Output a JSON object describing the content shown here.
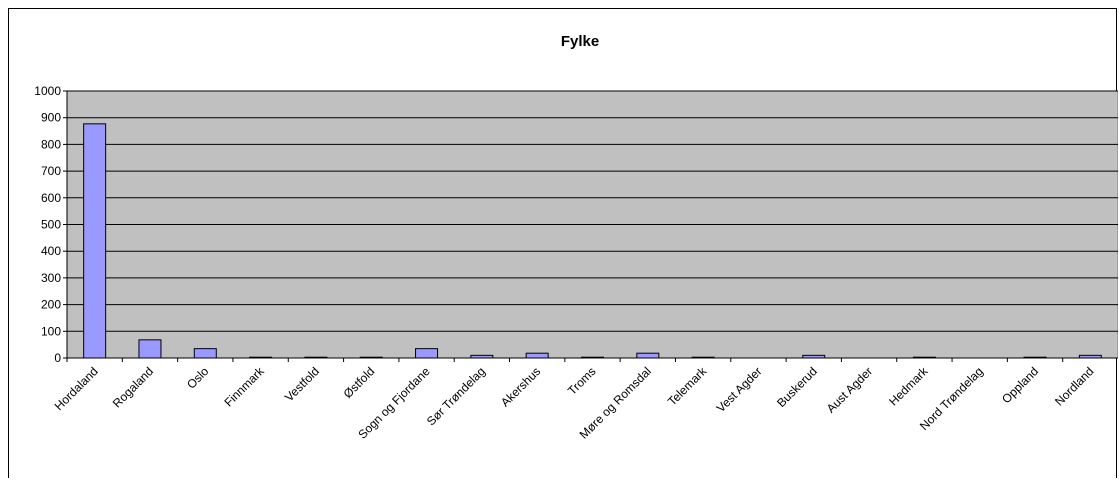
{
  "chart_data": {
    "type": "bar",
    "title": "Fylke",
    "xlabel": "",
    "ylabel": "",
    "ylim": [
      0,
      1000
    ],
    "yticks": [
      0,
      100,
      200,
      300,
      400,
      500,
      600,
      700,
      800,
      900,
      1000
    ],
    "grid": true,
    "legend": "none",
    "categories": [
      "Hordaland",
      "Rogaland",
      "Oslo",
      "Finnmark",
      "Vestfold",
      "Østfold",
      "Sogn og Fjordane",
      "Sør Trøndelag",
      "Akershus",
      "Troms",
      "Møre og Romsdal",
      "Telemark",
      "Vest Agder",
      "Buskerud",
      "Aust Agder",
      "Hedmark",
      "Nord Trøndelag",
      "Oppland",
      "Nordland"
    ],
    "values": [
      877,
      68,
      35,
      3,
      3,
      3,
      35,
      10,
      18,
      3,
      18,
      3,
      0,
      10,
      0,
      3,
      0,
      3,
      10
    ],
    "colors": {
      "bar_fill": "#9999ff",
      "bar_stroke": "#000000",
      "plot_background": "#c0c0c0",
      "gridline": "#000000"
    }
  }
}
